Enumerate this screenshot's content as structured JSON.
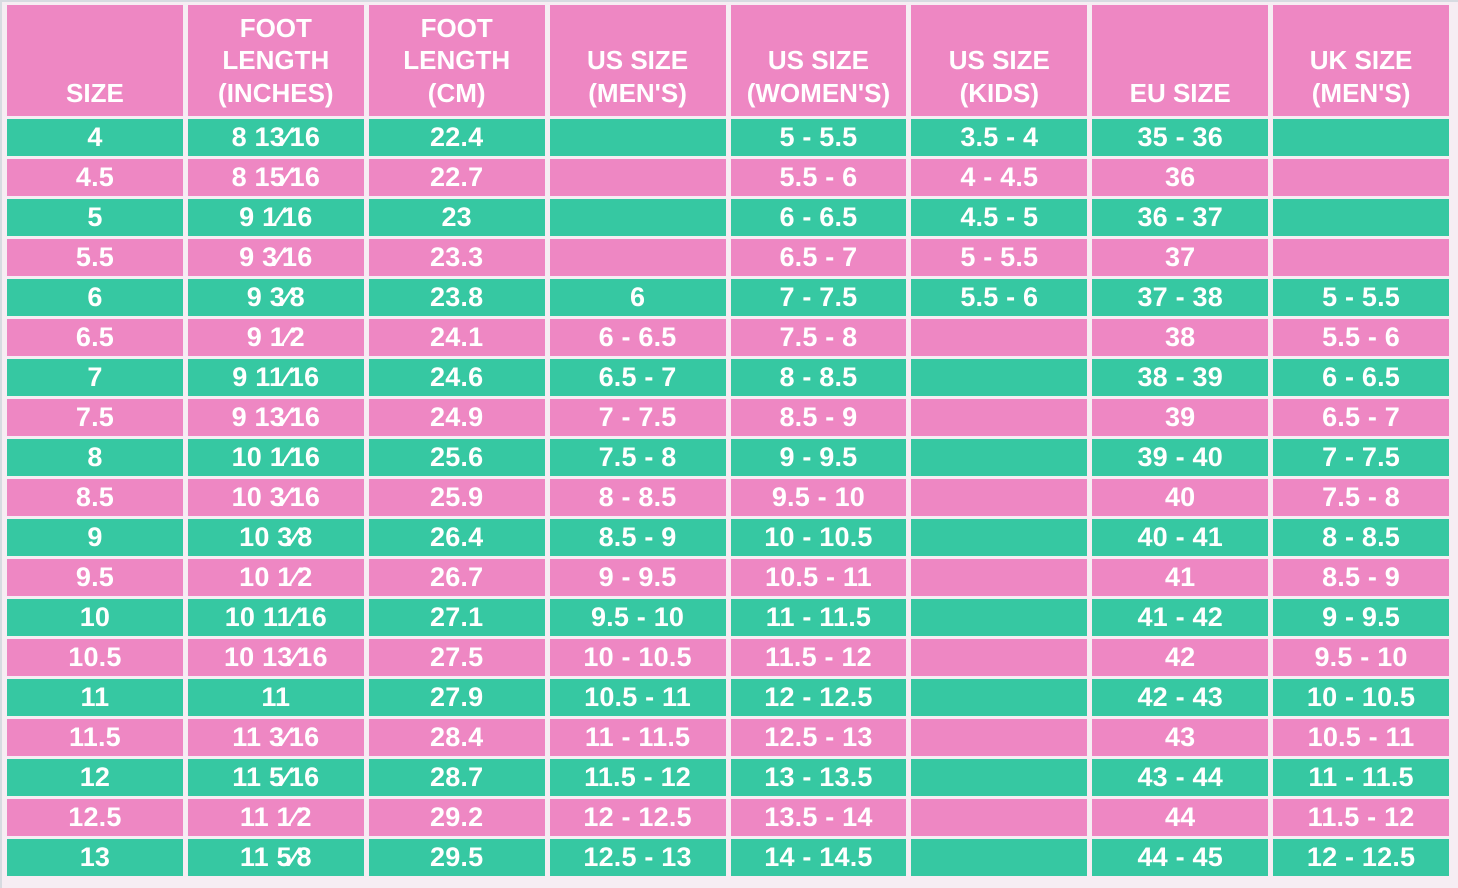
{
  "colors": {
    "pink": "#ee87c3",
    "teal": "#36c8a2",
    "text": "#ffffff",
    "grid": "#f6edf3",
    "edge": "#d7dbe1"
  },
  "chart_data": {
    "type": "table",
    "columns": [
      "SIZE",
      "FOOT\nLENGTH\n(INCHES)",
      "FOOT\nLENGTH\n(CM)",
      "US SIZE\n(MEN'S)",
      "US SIZE\n(WOMEN'S)",
      "US SIZE\n(KIDS)",
      "EU SIZE",
      "UK SIZE\n(MEN'S)"
    ],
    "rows": [
      [
        "4",
        "8 13⁄16",
        "22.4",
        "",
        "5 - 5.5",
        "3.5 - 4",
        "35 - 36",
        ""
      ],
      [
        "4.5",
        "8 15⁄16",
        "22.7",
        "",
        "5.5 - 6",
        "4 - 4.5",
        "36",
        ""
      ],
      [
        "5",
        "9 1⁄16",
        "23",
        "",
        "6 - 6.5",
        "4.5 - 5",
        "36 - 37",
        ""
      ],
      [
        "5.5",
        "9 3⁄16",
        "23.3",
        "",
        "6.5 - 7",
        "5 - 5.5",
        "37",
        ""
      ],
      [
        "6",
        "9 3⁄8",
        "23.8",
        "6",
        "7 - 7.5",
        "5.5 - 6",
        "37 - 38",
        "5 - 5.5"
      ],
      [
        "6.5",
        "9 1⁄2",
        "24.1",
        "6 - 6.5",
        "7.5 - 8",
        "",
        "38",
        "5.5 - 6"
      ],
      [
        "7",
        "9 11⁄16",
        "24.6",
        "6.5 - 7",
        "8 - 8.5",
        "",
        "38 - 39",
        "6 - 6.5"
      ],
      [
        "7.5",
        "9 13⁄16",
        "24.9",
        "7 - 7.5",
        "8.5 - 9",
        "",
        "39",
        "6.5 - 7"
      ],
      [
        "8",
        "10 1⁄16",
        "25.6",
        "7.5 - 8",
        "9 - 9.5",
        "",
        "39 - 40",
        "7 - 7.5"
      ],
      [
        "8.5",
        "10 3⁄16",
        "25.9",
        "8 - 8.5",
        "9.5 - 10",
        "",
        "40",
        "7.5 - 8"
      ],
      [
        "9",
        "10 3⁄8",
        "26.4",
        "8.5 - 9",
        "10 - 10.5",
        "",
        "40 - 41",
        "8 - 8.5"
      ],
      [
        "9.5",
        "10 1⁄2",
        "26.7",
        "9 - 9.5",
        "10.5 - 11",
        "",
        "41",
        "8.5 - 9"
      ],
      [
        "10",
        "10 11⁄16",
        "27.1",
        "9.5 - 10",
        "11 - 11.5",
        "",
        "41 - 42",
        "9 - 9.5"
      ],
      [
        "10.5",
        "10 13⁄16",
        "27.5",
        "10 - 10.5",
        "11.5 - 12",
        "",
        "42",
        "9.5 - 10"
      ],
      [
        "11",
        "11",
        "27.9",
        "10.5 - 11",
        "12 - 12.5",
        "",
        "42 - 43",
        "10 - 10.5"
      ],
      [
        "11.5",
        "11 3⁄16",
        "28.4",
        "11 - 11.5",
        "12.5 - 13",
        "",
        "43",
        "10.5 - 11"
      ],
      [
        "12",
        "11 5⁄16",
        "28.7",
        "11.5 - 12",
        "13 - 13.5",
        "",
        "43 - 44",
        "11 - 11.5"
      ],
      [
        "12.5",
        "11 1⁄2",
        "29.2",
        "12 - 12.5",
        "13.5 - 14",
        "",
        "44",
        "11.5 - 12"
      ],
      [
        "13",
        "11 5⁄8",
        "29.5",
        "12.5 - 13",
        "14 - 14.5",
        "",
        "44 - 45",
        "12 - 12.5"
      ]
    ],
    "layout": {
      "header_bg": "pink",
      "row_stripe_order": [
        "teal",
        "pink"
      ],
      "grid": "on"
    }
  }
}
